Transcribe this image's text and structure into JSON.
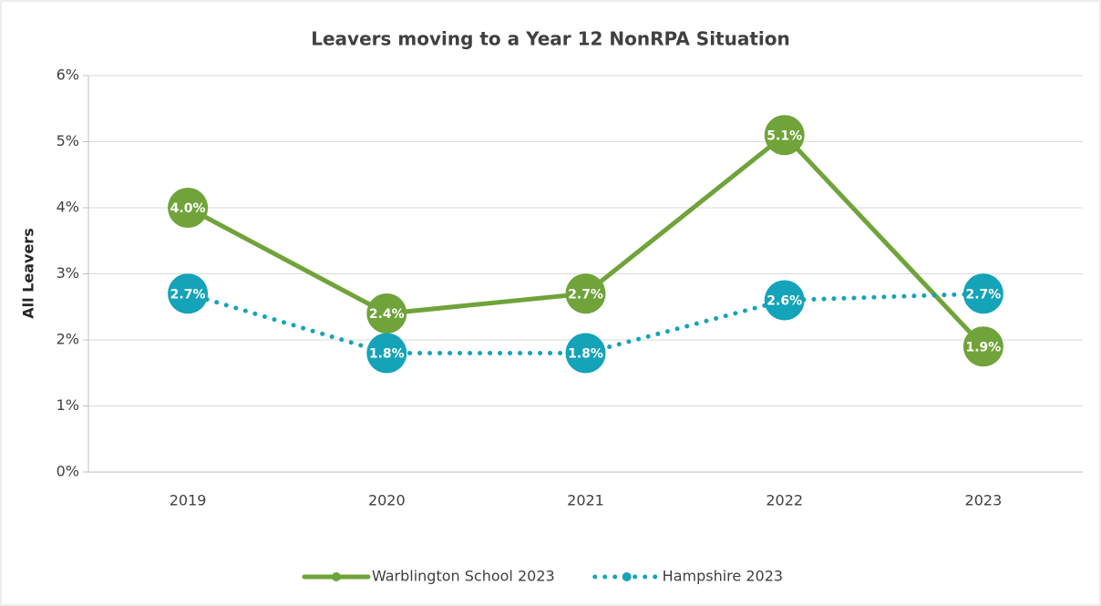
{
  "chart_data": {
    "type": "line",
    "title": "Leavers moving to a Year 12 NonRPA Situation",
    "y_label": "All Leavers",
    "categories": [
      "2019",
      "2020",
      "2021",
      "2022",
      "2023"
    ],
    "series": [
      {
        "name": "Warblington School 2023",
        "color": "#70a33a",
        "line_style": "solid",
        "values": [
          4.0,
          2.4,
          2.7,
          5.1,
          1.9
        ],
        "value_labels": [
          "4.0%",
          "2.4%",
          "2.7%",
          "5.1%",
          "1.9%"
        ]
      },
      {
        "name": "Hampshire 2023",
        "color": "#14a3b8",
        "line_style": "dotted",
        "values": [
          2.7,
          1.8,
          1.8,
          2.6,
          2.7
        ],
        "value_labels": [
          "2.7%",
          "1.8%",
          "1.8%",
          "2.6%",
          "2.7%"
        ]
      }
    ],
    "ylim": [
      0,
      6
    ],
    "yticks": [
      {
        "value": 0,
        "label": "0%"
      },
      {
        "value": 1,
        "label": "1%"
      },
      {
        "value": 2,
        "label": "2%"
      },
      {
        "value": 3,
        "label": "3%"
      },
      {
        "value": 4,
        "label": "4%"
      },
      {
        "value": 5,
        "label": "5%"
      },
      {
        "value": 6,
        "label": "6%"
      }
    ],
    "grid": true,
    "legend": "bottom"
  }
}
